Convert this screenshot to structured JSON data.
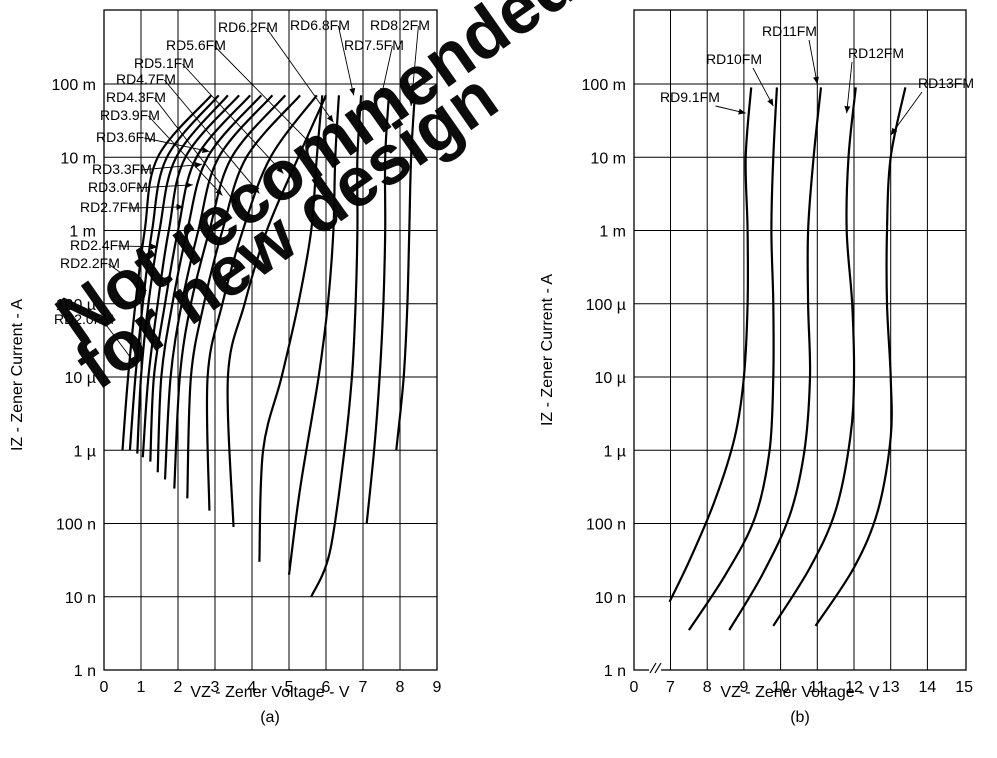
{
  "watermark": {
    "text_1": "Not recommended",
    "text_2": "for new design",
    "color": "#ff0000"
  },
  "chart_data": [
    {
      "type": "line",
      "panel": "(a)",
      "xlabel": "VZ - Zener Voltage - V",
      "ylabel": "IZ - Zener Current - A",
      "xlim": [
        0,
        9
      ],
      "ylim": [
        1e-09,
        1
      ],
      "yscale": "log",
      "xticks": [
        "0",
        "1",
        "2",
        "3",
        "4",
        "5",
        "6",
        "7",
        "8",
        "9"
      ],
      "yticks": [
        "1 n",
        "10 n",
        "100 n",
        "1 µ",
        "10 µ",
        "100 µ",
        "1 m",
        "10 m",
        "100 m"
      ],
      "grid": true,
      "series": [
        {
          "name": "RD2.0FM",
          "label_point": [
            0.85,
            1.5e-05
          ],
          "points": [
            [
              0.5,
              1e-06
            ],
            [
              0.65,
              1e-05
            ],
            [
              0.85,
              0.0001
            ],
            [
              1.1,
              0.001
            ],
            [
              1.45,
              0.01
            ],
            [
              2.9,
              0.07
            ]
          ]
        },
        {
          "name": "RD2.2FM",
          "label_point": [
            1.15,
            0.00015
          ],
          "points": [
            [
              0.7,
              1e-06
            ],
            [
              0.85,
              1e-05
            ],
            [
              1.05,
              0.0001
            ],
            [
              1.3,
              0.001
            ],
            [
              1.7,
              0.01
            ],
            [
              3.1,
              0.07
            ]
          ]
        },
        {
          "name": "RD2.4FM",
          "label_point": [
            1.45,
            0.0006
          ],
          "points": [
            [
              0.9,
              9e-07
            ],
            [
              1.0,
              1e-05
            ],
            [
              1.2,
              0.0001
            ],
            [
              1.5,
              0.001
            ],
            [
              1.95,
              0.01
            ],
            [
              3.35,
              0.07
            ]
          ]
        },
        {
          "name": "RD2.7FM",
          "label_point": [
            2.15,
            0.0021
          ],
          "points": [
            [
              1.05,
              8e-07
            ],
            [
              1.2,
              1e-05
            ],
            [
              1.45,
              0.0001
            ],
            [
              1.75,
              0.001
            ],
            [
              2.2,
              0.01
            ],
            [
              3.65,
              0.07
            ]
          ]
        },
        {
          "name": "RD3.0FM",
          "label_point": [
            2.4,
            0.0042
          ],
          "points": [
            [
              1.25,
              7e-07
            ],
            [
              1.35,
              1e-05
            ],
            [
              1.65,
              0.0001
            ],
            [
              2.0,
              0.001
            ],
            [
              2.5,
              0.01
            ],
            [
              3.95,
              0.07
            ]
          ]
        },
        {
          "name": "RD3.3FM",
          "label_point": [
            2.65,
            0.008
          ],
          "points": [
            [
              1.45,
              5e-07
            ],
            [
              1.55,
              1e-05
            ],
            [
              1.85,
              0.0001
            ],
            [
              2.25,
              0.001
            ],
            [
              2.8,
              0.01
            ],
            [
              4.25,
              0.07
            ]
          ]
        },
        {
          "name": "RD3.6FM",
          "label_point": [
            2.85,
            0.012
          ],
          "points": [
            [
              1.65,
              4e-07
            ],
            [
              1.8,
              1e-05
            ],
            [
              2.1,
              0.0001
            ],
            [
              2.55,
              0.001
            ],
            [
              3.1,
              0.01
            ],
            [
              4.55,
              0.07
            ]
          ]
        },
        {
          "name": "RD3.9FM",
          "label_point": [
            3.2,
            0.003
          ],
          "points": [
            [
              1.9,
              3e-07
            ],
            [
              2.05,
              1e-05
            ],
            [
              2.35,
              0.0001
            ],
            [
              2.85,
              0.001
            ],
            [
              3.45,
              0.01
            ],
            [
              4.9,
              0.07
            ]
          ]
        },
        {
          "name": "RD4.3FM",
          "label_point": [
            3.6,
            0.0022
          ],
          "points": [
            [
              2.25,
              2.2e-07
            ],
            [
              2.35,
              1e-05
            ],
            [
              2.7,
              0.0001
            ],
            [
              3.2,
              0.001
            ],
            [
              3.85,
              0.01
            ],
            [
              5.3,
              0.07
            ]
          ]
        },
        {
          "name": "RD4.7FM",
          "label_point": [
            4.2,
            0.0032
          ],
          "points": [
            [
              2.85,
              1.5e-07
            ],
            [
              2.8,
              1e-05
            ],
            [
              3.2,
              0.0001
            ],
            [
              3.75,
              0.001
            ],
            [
              4.5,
              0.01
            ],
            [
              5.75,
              0.07
            ]
          ]
        },
        {
          "name": "RD5.1FM",
          "label_point": [
            4.85,
            0.006
          ],
          "points": [
            [
              3.5,
              9e-08
            ],
            [
              3.35,
              1e-05
            ],
            [
              3.8,
              0.0001
            ],
            [
              4.4,
              0.001
            ],
            [
              5.25,
              0.01
            ],
            [
              6.0,
              0.07
            ]
          ]
        },
        {
          "name": "RD5.6FM",
          "label_point": [
            5.6,
            0.015
          ],
          "points": [
            [
              4.2,
              3e-08
            ],
            [
              4.3,
              1e-06
            ],
            [
              4.8,
              1e-05
            ],
            [
              5.25,
              0.0001
            ],
            [
              5.6,
              0.001
            ],
            [
              5.75,
              0.01
            ],
            [
              5.9,
              0.07
            ]
          ]
        },
        {
          "name": "RD6.2FM",
          "label_point": [
            6.2,
            0.03
          ],
          "points": [
            [
              5.0,
              2e-08
            ],
            [
              5.3,
              3e-07
            ],
            [
              5.8,
              1e-05
            ],
            [
              6.05,
              0.0001
            ],
            [
              6.2,
              0.001
            ],
            [
              6.25,
              0.01
            ],
            [
              6.35,
              0.07
            ]
          ]
        },
        {
          "name": "RD6.8FM",
          "label_point": [
            6.75,
            0.07
          ],
          "points": [
            [
              5.6,
              1e-08
            ],
            [
              6.1,
              4e-08
            ],
            [
              6.5,
              1e-06
            ],
            [
              6.7,
              1e-05
            ],
            [
              6.8,
              0.0001
            ],
            [
              6.85,
              0.001
            ],
            [
              6.85,
              0.01
            ],
            [
              6.95,
              0.07
            ]
          ]
        },
        {
          "name": "RD7.5FM",
          "label_point": [
            7.5,
            0.07
          ],
          "points": [
            [
              7.1,
              1e-07
            ],
            [
              7.3,
              1e-06
            ],
            [
              7.45,
              1e-05
            ],
            [
              7.55,
              0.0001
            ],
            [
              7.6,
              0.001
            ],
            [
              7.6,
              0.01
            ],
            [
              7.7,
              0.07
            ]
          ]
        },
        {
          "name": "RD8.2FM",
          "label_point": [
            8.3,
            0.05
          ],
          "points": [
            [
              7.9,
              1e-06
            ],
            [
              8.1,
              1e-05
            ],
            [
              8.2,
              0.0001
            ],
            [
              8.25,
              0.001
            ],
            [
              8.3,
              0.01
            ],
            [
              8.4,
              0.07
            ]
          ]
        }
      ],
      "subtitle": "(a)"
    },
    {
      "type": "line",
      "panel": "(b)",
      "xlabel": "VZ - Zener Voltage - V",
      "ylabel": "IZ - Zener Current - A",
      "xlim": [
        0,
        15
      ],
      "axis_break": true,
      "ylim": [
        1e-09,
        1
      ],
      "yscale": "log",
      "xticks": [
        "0",
        "7",
        "8",
        "9",
        "10",
        "11",
        "12",
        "13",
        "14",
        "15"
      ],
      "yticks": [
        "1 n",
        "10 n",
        "100 n",
        "1 µ",
        "10 µ",
        "100 µ",
        "1 m",
        "10 m",
        "100 m"
      ],
      "grid": true,
      "series": [
        {
          "name": "RD9.1FM",
          "label_point": [
            9.05,
            0.04
          ],
          "points": [
            [
              6.8,
              8.5e-09
            ],
            [
              7.5,
              3e-08
            ],
            [
              8.2,
              2e-07
            ],
            [
              8.75,
              1.5e-06
            ],
            [
              9.0,
              1e-05
            ],
            [
              9.1,
              0.0001
            ],
            [
              9.1,
              0.001
            ],
            [
              9.05,
              0.01
            ],
            [
              9.2,
              0.09
            ]
          ]
        },
        {
          "name": "RD10FM",
          "label_point": [
            9.8,
            0.05
          ],
          "points": [
            [
              7.5,
              3.5e-09
            ],
            [
              8.5,
              2e-08
            ],
            [
              9.3,
              1.2e-07
            ],
            [
              9.7,
              1e-06
            ],
            [
              9.8,
              1e-05
            ],
            [
              9.8,
              0.0001
            ],
            [
              9.75,
              0.001
            ],
            [
              9.8,
              0.01
            ],
            [
              9.9,
              0.09
            ]
          ]
        },
        {
          "name": "RD11FM",
          "label_point": [
            11.0,
            0.1
          ],
          "points": [
            [
              8.6,
              3.5e-09
            ],
            [
              9.5,
              2e-08
            ],
            [
              10.25,
              1.3e-07
            ],
            [
              10.65,
              1e-06
            ],
            [
              10.8,
              1e-05
            ],
            [
              10.75,
              0.0001
            ],
            [
              10.75,
              0.001
            ],
            [
              10.9,
              0.01
            ],
            [
              11.1,
              0.09
            ]
          ]
        },
        {
          "name": "RD12FM",
          "label_point": [
            11.8,
            0.04
          ],
          "points": [
            [
              9.8,
              4e-09
            ],
            [
              10.8,
              2.5e-08
            ],
            [
              11.5,
              1.5e-07
            ],
            [
              11.9,
              1.5e-06
            ],
            [
              12.0,
              1e-05
            ],
            [
              11.95,
              0.0001
            ],
            [
              11.8,
              0.001
            ],
            [
              11.85,
              0.01
            ],
            [
              12.05,
              0.09
            ]
          ]
        },
        {
          "name": "RD13FM",
          "label_point": [
            13.0,
            0.02
          ],
          "points": [
            [
              10.95,
              4e-09
            ],
            [
              12.0,
              2.5e-08
            ],
            [
              12.65,
              1.5e-07
            ],
            [
              13.0,
              1.5e-06
            ],
            [
              13.0,
              1e-05
            ],
            [
              12.9,
              0.0001
            ],
            [
              12.9,
              0.001
            ],
            [
              13.0,
              0.01
            ],
            [
              13.4,
              0.09
            ]
          ]
        }
      ],
      "subtitle": "(b)"
    }
  ]
}
